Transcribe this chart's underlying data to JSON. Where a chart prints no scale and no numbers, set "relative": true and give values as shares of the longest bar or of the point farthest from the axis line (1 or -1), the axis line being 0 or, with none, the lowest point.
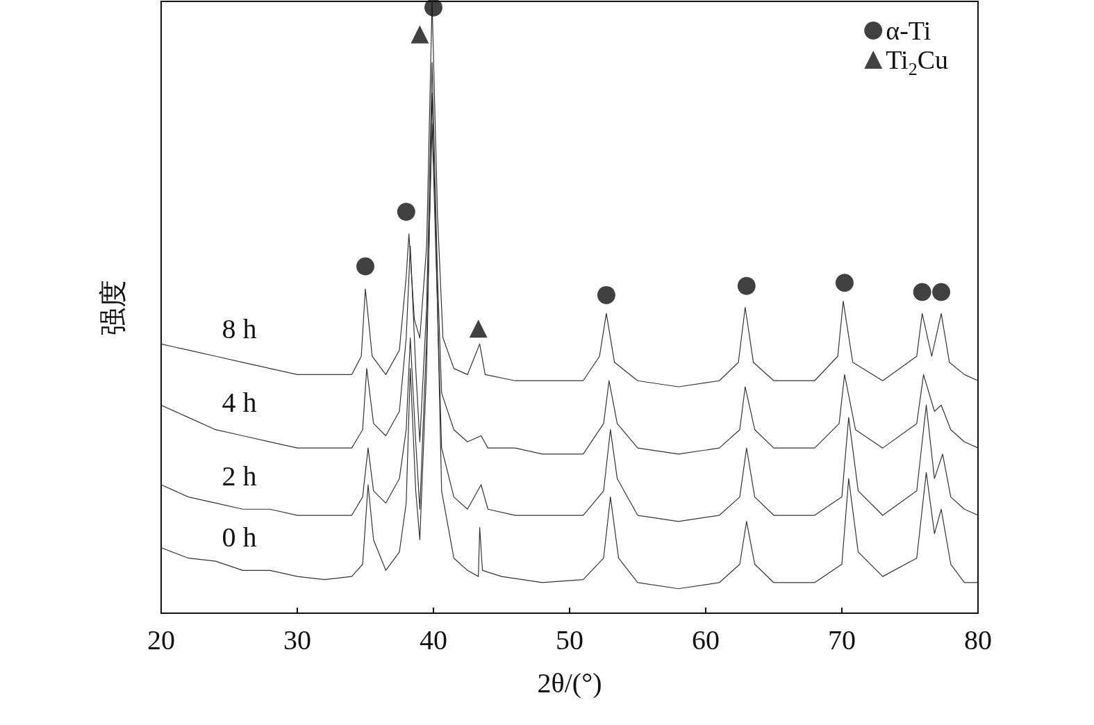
{
  "chart_data": {
    "type": "line",
    "relative": true,
    "xlabel": "2θ/(°)",
    "ylabel": "强度",
    "xlim": [
      20,
      80
    ],
    "xticks": [
      20,
      30,
      40,
      50,
      60,
      70,
      80
    ],
    "legend": "top right",
    "series": [
      {
        "name": "0 h",
        "color": "#333333",
        "marker": "none",
        "x": [
          20,
          22,
          24,
          26,
          28,
          30,
          32,
          34,
          34.8,
          35.2,
          35.6,
          36.5,
          37.5,
          38,
          38.3,
          38.7,
          39,
          39.5,
          39.9,
          40.2,
          40.6,
          41.5,
          42.5,
          43.3,
          43.4,
          43.6,
          45,
          48,
          51,
          52.5,
          53,
          53.6,
          55,
          58,
          61,
          62.5,
          63,
          63.6,
          65,
          68,
          70,
          70.5,
          71.2,
          73,
          75.5,
          76.2,
          76.8,
          77.3,
          78,
          79,
          80
        ],
        "values": [
          0.107,
          0.09,
          0.085,
          0.07,
          0.07,
          0.06,
          0.055,
          0.06,
          0.08,
          0.21,
          0.12,
          0.07,
          0.1,
          0.18,
          0.4,
          0.2,
          0.12,
          0.4,
          0.85,
          0.6,
          0.2,
          0.09,
          0.07,
          0.06,
          0.14,
          0.07,
          0.06,
          0.05,
          0.055,
          0.09,
          0.19,
          0.09,
          0.05,
          0.04,
          0.05,
          0.08,
          0.15,
          0.08,
          0.05,
          0.05,
          0.08,
          0.22,
          0.1,
          0.06,
          0.09,
          0.23,
          0.13,
          0.17,
          0.08,
          0.05,
          0.05
        ]
      },
      {
        "name": "2 h",
        "color": "#333333",
        "marker": "none",
        "x": [
          20,
          22,
          24,
          26,
          28,
          30,
          32,
          34,
          34.8,
          35.2,
          35.6,
          36.5,
          37.5,
          38,
          38.3,
          38.7,
          39,
          39.5,
          39.9,
          40.3,
          40.6,
          41.5,
          42.5,
          43.5,
          44,
          46,
          48,
          51,
          52.5,
          53,
          53.5,
          55,
          58,
          61,
          62.5,
          63,
          63.6,
          65,
          68,
          70,
          70.5,
          71.2,
          73,
          75.5,
          76.2,
          76.8,
          77.4,
          78,
          79,
          80
        ],
        "values": [
          0.21,
          0.19,
          0.18,
          0.17,
          0.17,
          0.16,
          0.16,
          0.16,
          0.19,
          0.27,
          0.2,
          0.18,
          0.22,
          0.3,
          0.45,
          0.28,
          0.17,
          0.45,
          0.8,
          0.5,
          0.27,
          0.19,
          0.17,
          0.21,
          0.17,
          0.16,
          0.16,
          0.16,
          0.2,
          0.3,
          0.22,
          0.16,
          0.15,
          0.16,
          0.19,
          0.27,
          0.19,
          0.16,
          0.16,
          0.19,
          0.32,
          0.2,
          0.16,
          0.2,
          0.34,
          0.22,
          0.26,
          0.19,
          0.17,
          0.16
        ]
      },
      {
        "name": "4 h",
        "color": "#333333",
        "marker": "none",
        "x": [
          20,
          22,
          24,
          26,
          28,
          30,
          32,
          34,
          34.8,
          35.1,
          35.6,
          36.5,
          37.5,
          38,
          38.3,
          38.7,
          39,
          39.5,
          39.9,
          40.3,
          40.6,
          41.5,
          42.5,
          43.5,
          44,
          46,
          48,
          51,
          52.5,
          52.9,
          53.5,
          55,
          58,
          61,
          62.5,
          62.9,
          63.6,
          65,
          68,
          69.8,
          70.2,
          71,
          73,
          75.5,
          76,
          76.8,
          77.3,
          78,
          79,
          80
        ],
        "values": [
          0.34,
          0.32,
          0.3,
          0.29,
          0.28,
          0.27,
          0.27,
          0.27,
          0.3,
          0.4,
          0.31,
          0.29,
          0.33,
          0.45,
          0.6,
          0.4,
          0.28,
          0.5,
          0.9,
          0.55,
          0.36,
          0.3,
          0.28,
          0.29,
          0.27,
          0.27,
          0.26,
          0.26,
          0.31,
          0.38,
          0.31,
          0.27,
          0.26,
          0.27,
          0.3,
          0.37,
          0.3,
          0.27,
          0.27,
          0.31,
          0.39,
          0.3,
          0.27,
          0.31,
          0.39,
          0.33,
          0.34,
          0.3,
          0.28,
          0.27
        ]
      },
      {
        "name": "8 h",
        "color": "#333333",
        "marker": "none",
        "x": [
          20,
          22,
          24,
          26,
          28,
          30,
          32,
          34,
          34.7,
          35,
          35.5,
          36.5,
          37.5,
          38,
          38.2,
          38.6,
          39,
          39.5,
          39.9,
          40.3,
          40.7,
          41.5,
          42.5,
          43.4,
          43.8,
          46,
          48,
          51,
          52.2,
          52.7,
          53.3,
          55,
          58,
          61,
          62.4,
          62.9,
          63.5,
          65,
          68,
          69.7,
          70.1,
          70.8,
          73,
          75.5,
          75.9,
          76.6,
          77.3,
          77.9,
          79,
          80
        ],
        "values": [
          0.44,
          0.43,
          0.42,
          0.41,
          0.4,
          0.39,
          0.39,
          0.39,
          0.42,
          0.53,
          0.42,
          0.39,
          0.43,
          0.55,
          0.62,
          0.48,
          0.45,
          0.6,
          1,
          0.65,
          0.45,
          0.4,
          0.39,
          0.44,
          0.39,
          0.38,
          0.38,
          0.38,
          0.42,
          0.49,
          0.41,
          0.38,
          0.37,
          0.38,
          0.41,
          0.5,
          0.41,
          0.38,
          0.38,
          0.42,
          0.51,
          0.41,
          0.38,
          0.42,
          0.49,
          0.42,
          0.49,
          0.41,
          0.39,
          0.38
        ]
      },
      {
        "name": "α-Ti",
        "type": "scatter",
        "marker": "circle",
        "color": "#111111",
        "x": [
          35,
          38,
          40,
          52.7,
          63,
          70.2,
          75.9,
          77.3
        ],
        "values": [
          0.567,
          0.656,
          0.99,
          0.52,
          0.535,
          0.54,
          0.525,
          0.525
        ]
      },
      {
        "name": "Ti$_{2}$Cu",
        "type": "scatter",
        "marker": "triangle",
        "color": "#111111",
        "x": [
          39,
          43.3
        ],
        "values": [
          0.946,
          0.465
        ]
      }
    ]
  }
}
